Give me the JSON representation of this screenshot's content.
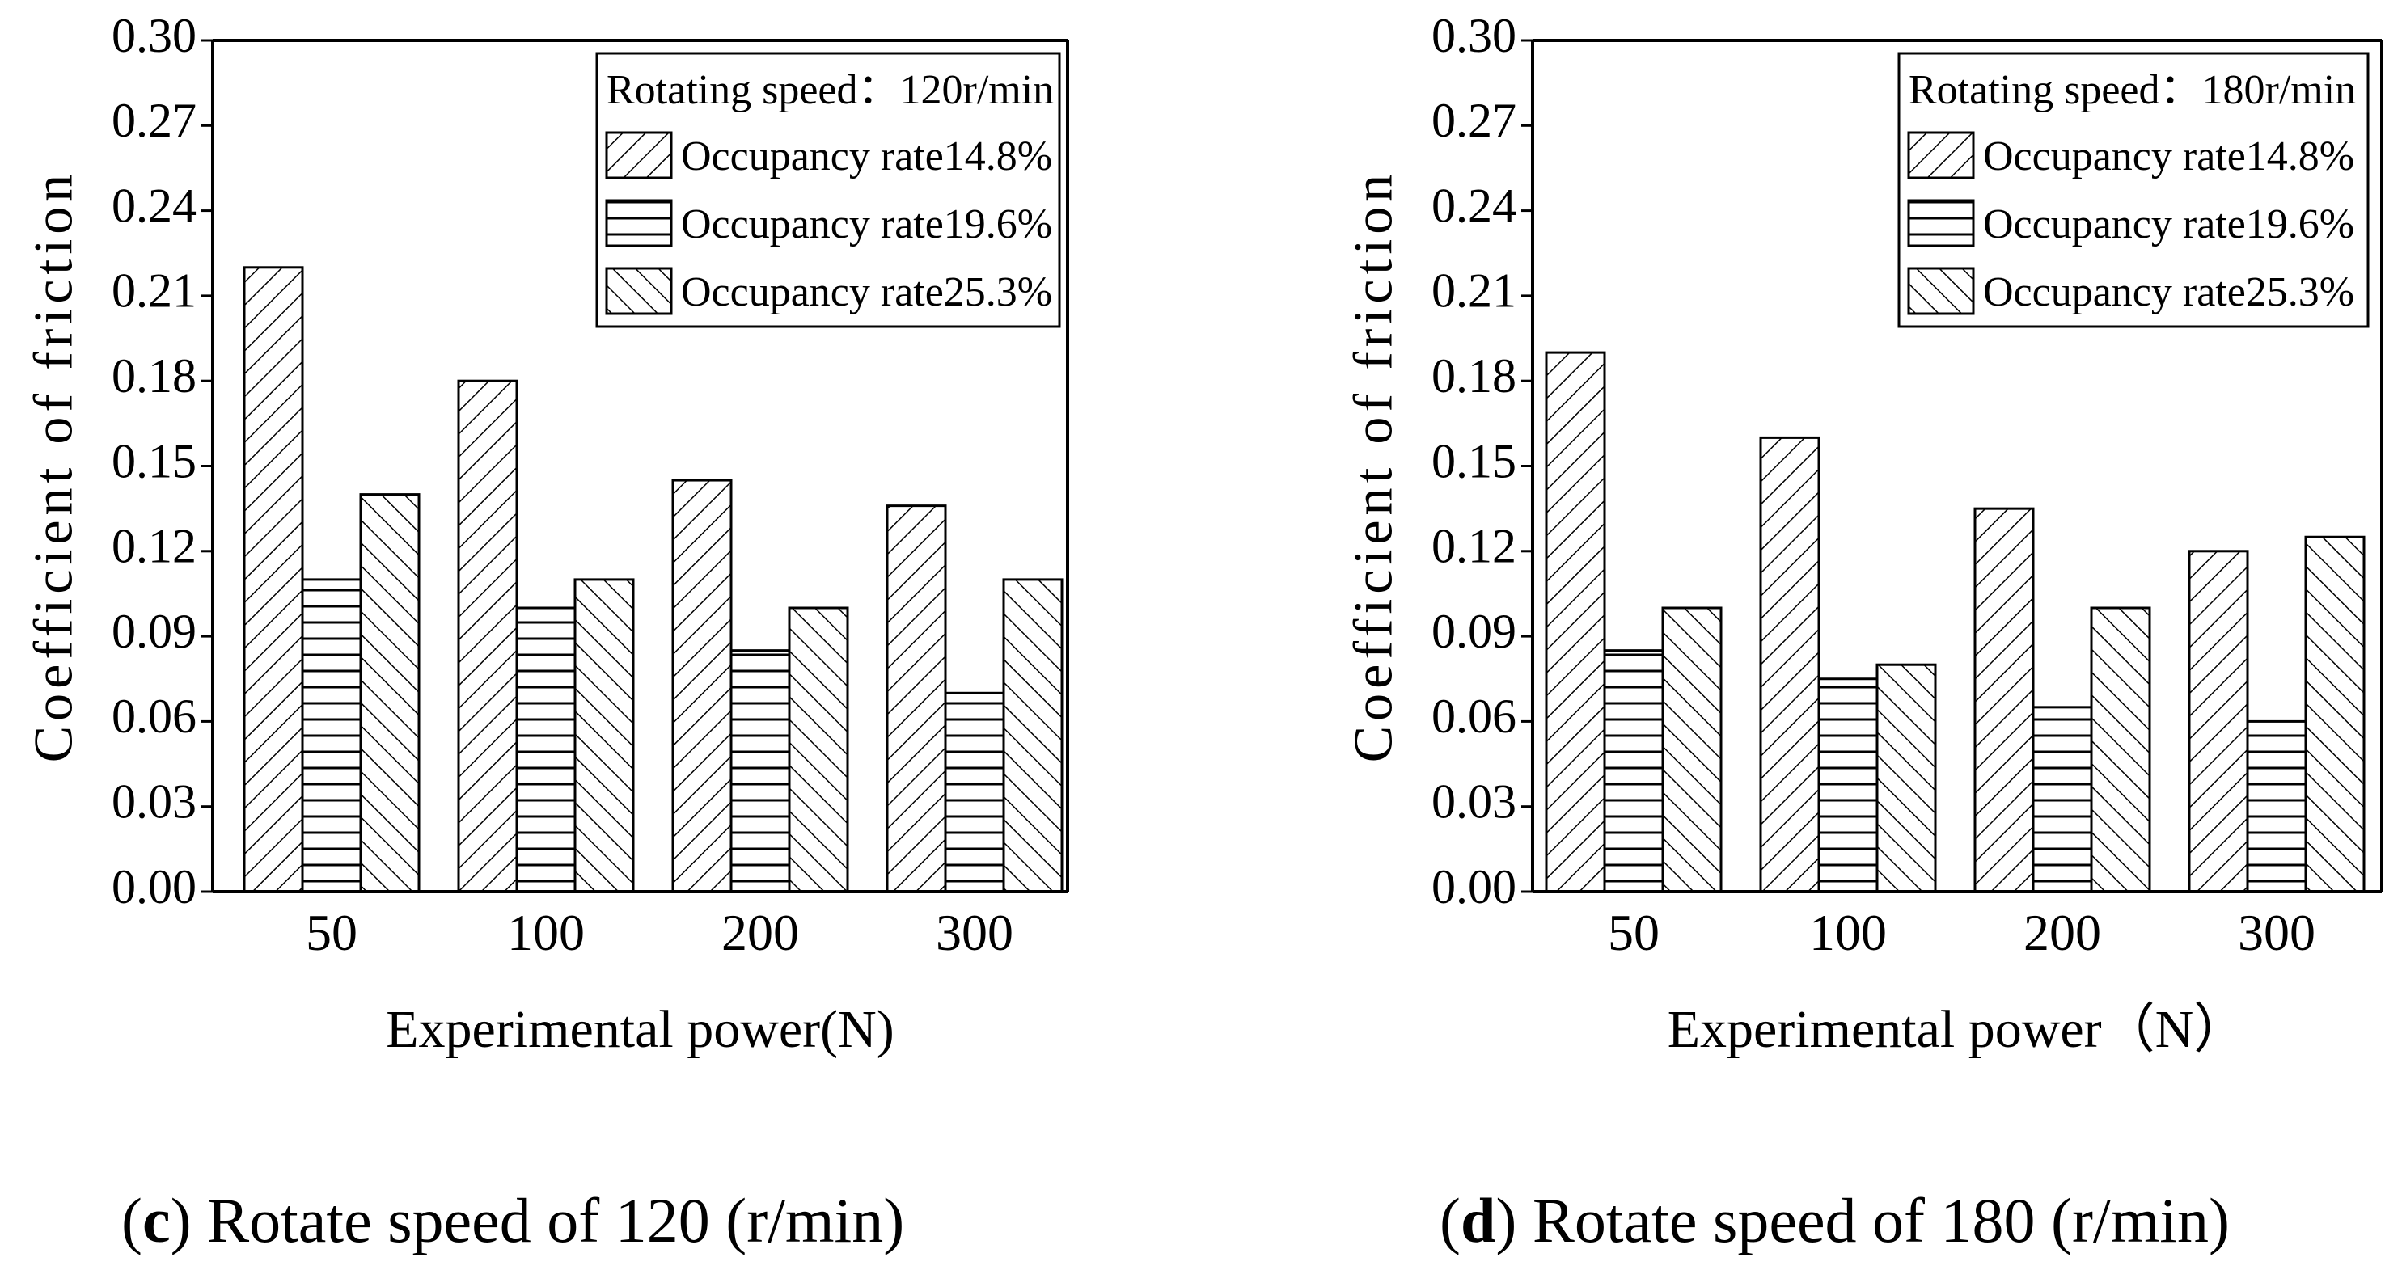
{
  "chart_data": [
    {
      "type": "bar",
      "panel": "c",
      "caption_letter": "c",
      "caption_text": " Rotate speed of 120 (r/min)",
      "legend_title": "Rotating speed：120r/min",
      "categories": [
        "50",
        "100",
        "200",
        "300"
      ],
      "series": [
        {
          "name": "Occupancy rate14.8%",
          "pattern": "diag-right",
          "values": [
            0.22,
            0.18,
            0.145,
            0.136
          ]
        },
        {
          "name": "Occupancy rate19.6%",
          "pattern": "horizontal",
          "values": [
            0.11,
            0.1,
            0.085,
            0.07
          ]
        },
        {
          "name": "Occupancy rate25.3%",
          "pattern": "diag-left",
          "values": [
            0.14,
            0.11,
            0.1,
            0.11
          ]
        }
      ],
      "xlabel": "Experimental power(N)",
      "ylabel": "Coefficient of friction",
      "ylim": [
        0.0,
        0.3
      ],
      "yticks": [
        "0.00",
        "0.03",
        "0.06",
        "0.09",
        "0.12",
        "0.15",
        "0.18",
        "0.21",
        "0.24",
        "0.27",
        "0.30"
      ],
      "legend_position": "top-right",
      "grid": false
    },
    {
      "type": "bar",
      "panel": "d",
      "caption_letter": "d",
      "caption_text": " Rotate speed of 180 (r/min)",
      "legend_title": "Rotating speed：180r/min",
      "categories": [
        "50",
        "100",
        "200",
        "300"
      ],
      "series": [
        {
          "name": "Occupancy rate14.8%",
          "pattern": "diag-right",
          "values": [
            0.19,
            0.16,
            0.135,
            0.12
          ]
        },
        {
          "name": "Occupancy rate19.6%",
          "pattern": "horizontal",
          "values": [
            0.085,
            0.075,
            0.065,
            0.06
          ]
        },
        {
          "name": "Occupancy rate25.3%",
          "pattern": "diag-left",
          "values": [
            0.1,
            0.08,
            0.1,
            0.125
          ]
        }
      ],
      "xlabel": "Experimental power（N）",
      "ylabel": "Coefficient of friction",
      "ylim": [
        0.0,
        0.3
      ],
      "yticks": [
        "0.00",
        "0.03",
        "0.06",
        "0.09",
        "0.12",
        "0.15",
        "0.18",
        "0.21",
        "0.24",
        "0.27",
        "0.30"
      ],
      "legend_position": "top-right",
      "grid": false
    }
  ]
}
